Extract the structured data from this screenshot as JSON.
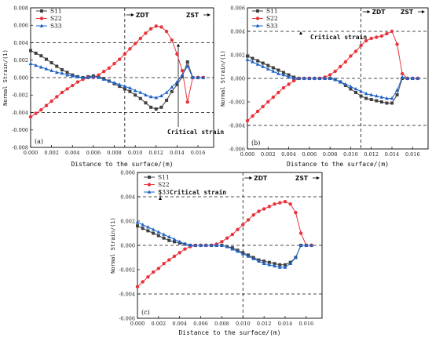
{
  "chart_data": [
    {
      "type": "line",
      "panel_label": "(a)",
      "xlabel": "Distance to the surface/(m)",
      "ylabel": "Normal Strain/(1)",
      "xlim": [
        0,
        0.0175
      ],
      "ylim": [
        -0.008,
        0.008
      ],
      "xticks": [
        "0.000",
        "0.002",
        "0.004",
        "0.006",
        "0.008",
        "0.010",
        "0.012",
        "0.014",
        "0.016"
      ],
      "yticks": [
        "0.008",
        "0.006",
        "0.004",
        "0.002",
        "0.000",
        "-0.002",
        "-0.004",
        "-0.006",
        "-0.008"
      ],
      "legend_position": "top-left",
      "hlines": [
        0.004,
        0,
        -0.004
      ],
      "vlines": [
        0.009
      ],
      "zone_labels": [
        "ZDT",
        "ZST"
      ],
      "annotation": "Critical strain",
      "series": [
        {
          "name": "S11",
          "color": "#404040",
          "marker": "square",
          "x": [
            0,
            0.0005,
            0.001,
            0.0015,
            0.002,
            0.0025,
            0.003,
            0.0035,
            0.004,
            0.0045,
            0.005,
            0.0055,
            0.006,
            0.0065,
            0.007,
            0.0075,
            0.008,
            0.0085,
            0.009,
            0.0095,
            0.01,
            0.0105,
            0.011,
            0.0115,
            0.012,
            0.0125,
            0.013,
            0.0135,
            0.014,
            0.0145,
            0.015,
            0.0155,
            0.016,
            0.0165
          ],
          "y": [
            0.0031,
            0.0028,
            0.0025,
            0.0021,
            0.0017,
            0.0013,
            0.0009,
            0.0006,
            0.0003,
            0.0001,
            0,
            0.0001,
            0.0002,
            0.0001,
            -0.0001,
            -0.0004,
            -0.0007,
            -0.001,
            -0.0013,
            -0.0016,
            -0.002,
            -0.0024,
            -0.0029,
            -0.0034,
            -0.0036,
            -0.0034,
            -0.0026,
            -0.0016,
            -0.0008,
            0.0001,
            0.0018,
            0,
            0,
            0
          ]
        },
        {
          "name": "S22",
          "color": "#e8333a",
          "marker": "circle",
          "x": [
            0,
            0.0005,
            0.001,
            0.0015,
            0.002,
            0.0025,
            0.003,
            0.0035,
            0.004,
            0.0045,
            0.005,
            0.0055,
            0.006,
            0.0065,
            0.007,
            0.0075,
            0.008,
            0.0085,
            0.009,
            0.0095,
            0.01,
            0.0105,
            0.011,
            0.0115,
            0.012,
            0.0125,
            0.013,
            0.0135,
            0.014,
            0.0145,
            0.015,
            0.0155,
            0.016,
            0.0165
          ],
          "y": [
            -0.0045,
            -0.0041,
            -0.0037,
            -0.0032,
            -0.0027,
            -0.0022,
            -0.0017,
            -0.0013,
            -0.0009,
            -0.0005,
            -0.0002,
            0,
            0,
            0.0003,
            0.0007,
            0.0011,
            0.0016,
            0.0021,
            0.0027,
            0.0033,
            0.0039,
            0.0045,
            0.0051,
            0.0056,
            0.0059,
            0.0058,
            0.0053,
            0.0043,
            0.0027,
            0.0008,
            -0.0028,
            0,
            0,
            0
          ]
        },
        {
          "name": "S33",
          "color": "#1f63c8",
          "marker": "triangle",
          "x": [
            0,
            0.0005,
            0.001,
            0.0015,
            0.002,
            0.0025,
            0.003,
            0.0035,
            0.004,
            0.0045,
            0.005,
            0.0055,
            0.006,
            0.0065,
            0.007,
            0.0075,
            0.008,
            0.0085,
            0.009,
            0.0095,
            0.01,
            0.0105,
            0.011,
            0.0115,
            0.012,
            0.0125,
            0.013,
            0.0135,
            0.014,
            0.0145,
            0.015,
            0.0155,
            0.016,
            0.0165
          ],
          "y": [
            0.0016,
            0.0014,
            0.0012,
            0.001,
            0.0008,
            0.0006,
            0.0005,
            0.0003,
            0.0002,
            0.0001,
            0,
            0,
            0.0001,
            0,
            -0.0002,
            -0.0004,
            -0.0006,
            -0.0008,
            -0.001,
            -0.0012,
            -0.0015,
            -0.0017,
            -0.002,
            -0.0022,
            -0.0023,
            -0.0021,
            -0.0017,
            -0.0011,
            -0.0005,
            0.0003,
            0.0013,
            0,
            0,
            0
          ]
        }
      ]
    },
    {
      "type": "line",
      "panel_label": "(b)",
      "xlabel": "Distance to the surface/(m)",
      "ylabel": "Normal Strain/(1)",
      "xlim": [
        0,
        0.0175
      ],
      "ylim": [
        -0.006,
        0.006
      ],
      "xticks": [
        "0.000",
        "0.002",
        "0.004",
        "0.006",
        "0.008",
        "0.010",
        "0.012",
        "0.014",
        "0.016"
      ],
      "yticks": [
        "0.006",
        "0.004",
        "0.002",
        "0.000",
        "-0.002",
        "-0.004",
        "-0.006"
      ],
      "legend_position": "top-left",
      "hlines": [
        0.004,
        0,
        -0.004
      ],
      "vlines": [
        0.011
      ],
      "zone_labels": [
        "ZDT",
        "ZST"
      ],
      "annotation": "Critical strain",
      "series": [
        {
          "name": "S11",
          "color": "#404040",
          "marker": "square",
          "x": [
            0,
            0.0005,
            0.001,
            0.0015,
            0.002,
            0.0025,
            0.003,
            0.0035,
            0.004,
            0.0045,
            0.005,
            0.0055,
            0.006,
            0.0065,
            0.007,
            0.0075,
            0.008,
            0.0085,
            0.009,
            0.0095,
            0.01,
            0.0105,
            0.011,
            0.0115,
            0.012,
            0.0125,
            0.013,
            0.0135,
            0.014,
            0.0145,
            0.015,
            0.0155,
            0.016,
            0.0165
          ],
          "y": [
            0.0019,
            0.0017,
            0.0015,
            0.0013,
            0.0011,
            0.0009,
            0.0007,
            0.0005,
            0.0003,
            0.0001,
            0,
            0,
            0,
            0,
            0,
            0,
            0,
            -0.0001,
            -0.0003,
            -0.0006,
            -0.0009,
            -0.0012,
            -0.0015,
            -0.0017,
            -0.0018,
            -0.0019,
            -0.002,
            -0.0021,
            -0.0021,
            -0.0014,
            0,
            0,
            0,
            0
          ]
        },
        {
          "name": "S22",
          "color": "#e8333a",
          "marker": "circle",
          "x": [
            0,
            0.0005,
            0.001,
            0.0015,
            0.002,
            0.0025,
            0.003,
            0.0035,
            0.004,
            0.0045,
            0.005,
            0.0055,
            0.006,
            0.0065,
            0.007,
            0.0075,
            0.008,
            0.0085,
            0.009,
            0.0095,
            0.01,
            0.0105,
            0.011,
            0.0115,
            0.012,
            0.0125,
            0.013,
            0.0135,
            0.014,
            0.0145,
            0.015,
            0.0155,
            0.016,
            0.0165
          ],
          "y": [
            -0.0036,
            -0.0032,
            -0.0028,
            -0.0024,
            -0.002,
            -0.0016,
            -0.0012,
            -0.0008,
            -0.0005,
            -0.0002,
            0,
            0,
            0,
            0,
            0,
            0.0001,
            0.0003,
            0.0006,
            0.001,
            0.0014,
            0.0019,
            0.0023,
            0.0028,
            0.0032,
            0.0034,
            0.0035,
            0.0036,
            0.0038,
            0.004,
            0.0029,
            0.0004,
            0,
            0,
            0
          ]
        },
        {
          "name": "S33",
          "color": "#1f63c8",
          "marker": "triangle",
          "x": [
            0,
            0.0005,
            0.001,
            0.0015,
            0.002,
            0.0025,
            0.003,
            0.0035,
            0.004,
            0.0045,
            0.005,
            0.0055,
            0.006,
            0.0065,
            0.007,
            0.0075,
            0.008,
            0.0085,
            0.009,
            0.0095,
            0.01,
            0.0105,
            0.011,
            0.0115,
            0.012,
            0.0125,
            0.013,
            0.0135,
            0.014,
            0.0145,
            0.015,
            0.0155,
            0.016,
            0.0165
          ],
          "y": [
            0.0016,
            0.0014,
            0.0012,
            0.001,
            0.0008,
            0.0006,
            0.0004,
            0.0003,
            0.0001,
            0,
            0,
            0,
            0,
            0,
            0,
            0,
            0,
            -0.0001,
            -0.0003,
            -0.0005,
            -0.0007,
            -0.0009,
            -0.0011,
            -0.0013,
            -0.0014,
            -0.0015,
            -0.0016,
            -0.0017,
            -0.0017,
            -0.001,
            0.0001,
            0,
            0,
            0
          ]
        }
      ]
    },
    {
      "type": "line",
      "panel_label": "(c)",
      "xlabel": "Distance to the surface/(m)",
      "ylabel": "Normal Strain/(1)",
      "xlim": [
        0,
        0.0175
      ],
      "ylim": [
        -0.006,
        0.006
      ],
      "xticks": [
        "0.000",
        "0.002",
        "0.004",
        "0.006",
        "0.008",
        "0.010",
        "0.012",
        "0.014",
        "0.016"
      ],
      "yticks": [
        "0.006",
        "0.004",
        "0.002",
        "0.000",
        "-0.002",
        "-0.004",
        "-0.006"
      ],
      "legend_position": "top-left",
      "hlines": [
        0.004,
        0,
        -0.004
      ],
      "vlines": [
        0.01
      ],
      "zone_labels": [
        "ZDT",
        "ZST"
      ],
      "annotation": "Critical strain",
      "series": [
        {
          "name": "S11",
          "color": "#404040",
          "marker": "square",
          "x": [
            0,
            0.0005,
            0.001,
            0.0015,
            0.002,
            0.0025,
            0.003,
            0.0035,
            0.004,
            0.0045,
            0.005,
            0.0055,
            0.006,
            0.0065,
            0.007,
            0.0075,
            0.008,
            0.0085,
            0.009,
            0.0095,
            0.01,
            0.0105,
            0.011,
            0.0115,
            0.012,
            0.0125,
            0.013,
            0.0135,
            0.014,
            0.0145,
            0.015,
            0.0155,
            0.016,
            0.0165
          ],
          "y": [
            0.0016,
            0.0014,
            0.0012,
            0.001,
            0.0008,
            0.0006,
            0.0004,
            0.0003,
            0.0002,
            0.0001,
            0,
            0,
            0,
            0,
            0,
            0,
            0,
            -0.0001,
            -0.0002,
            -0.0004,
            -0.0006,
            -0.0008,
            -0.001,
            -0.0012,
            -0.0013,
            -0.0014,
            -0.0015,
            -0.0016,
            -0.0016,
            -0.0014,
            -0.001,
            0,
            0,
            0
          ]
        },
        {
          "name": "S22",
          "color": "#e8333a",
          "marker": "circle",
          "x": [
            0,
            0.0005,
            0.001,
            0.0015,
            0.002,
            0.0025,
            0.003,
            0.0035,
            0.004,
            0.0045,
            0.005,
            0.0055,
            0.006,
            0.0065,
            0.007,
            0.0075,
            0.008,
            0.0085,
            0.009,
            0.0095,
            0.01,
            0.0105,
            0.011,
            0.0115,
            0.012,
            0.0125,
            0.013,
            0.0135,
            0.014,
            0.0145,
            0.015,
            0.0155,
            0.016,
            0.0165
          ],
          "y": [
            -0.0034,
            -0.003,
            -0.0026,
            -0.0022,
            -0.0019,
            -0.0015,
            -0.0012,
            -0.0009,
            -0.0006,
            -0.0003,
            -0.0001,
            0,
            0,
            0,
            0,
            0.0001,
            0.0003,
            0.0006,
            0.0009,
            0.0013,
            0.0017,
            0.0021,
            0.0025,
            0.0028,
            0.003,
            0.0032,
            0.0034,
            0.0035,
            0.0036,
            0.0034,
            0.0027,
            0.001,
            0,
            0
          ]
        },
        {
          "name": "S33",
          "color": "#1f63c8",
          "marker": "triangle",
          "x": [
            0,
            0.0005,
            0.001,
            0.0015,
            0.002,
            0.0025,
            0.003,
            0.0035,
            0.004,
            0.0045,
            0.005,
            0.0055,
            0.006,
            0.0065,
            0.007,
            0.0075,
            0.008,
            0.0085,
            0.009,
            0.0095,
            0.01,
            0.0105,
            0.011,
            0.0115,
            0.012,
            0.0125,
            0.013,
            0.0135,
            0.014,
            0.0145,
            0.015,
            0.0155,
            0.016,
            0.0165
          ],
          "y": [
            0.0019,
            0.0017,
            0.0015,
            0.0013,
            0.0011,
            0.0009,
            0.0007,
            0.0005,
            0.0003,
            0.0001,
            0,
            0,
            0,
            0,
            0,
            0,
            0,
            -0.0001,
            -0.0003,
            -0.0005,
            -0.0007,
            -0.0009,
            -0.0011,
            -0.0013,
            -0.0015,
            -0.0016,
            -0.0017,
            -0.0018,
            -0.0018,
            -0.0015,
            -0.001,
            0,
            0,
            0
          ]
        }
      ]
    }
  ]
}
